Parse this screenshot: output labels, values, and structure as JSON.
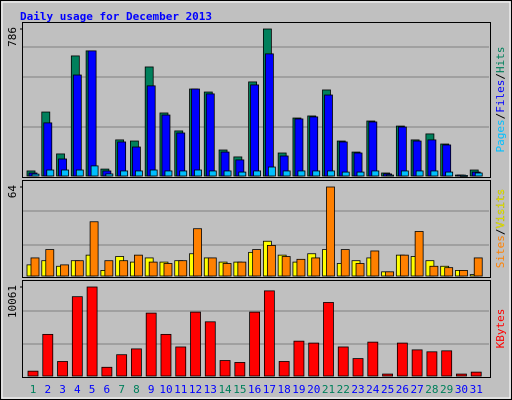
{
  "chart_data": [
    {
      "type": "bar",
      "title": "Daily usage for December 2013",
      "ylim": [
        0,
        786
      ],
      "yticks": [
        786
      ],
      "legend_separator": "/",
      "series": [
        {
          "name": "Hits",
          "color": "#00805c",
          "values": [
            27,
            342,
            118,
            642,
            669,
            37,
            193,
            187,
            583,
            337,
            241,
            465,
            449,
            139,
            102,
            503,
            786,
            123,
            310,
            321,
            460,
            187,
            128,
            294,
            16,
            267,
            193,
            225,
            171,
            5,
            32
          ]
        },
        {
          "name": "Files",
          "color": "#0000ff",
          "values": [
            16,
            284,
            91,
            540,
            669,
            27,
            182,
            155,
            482,
            326,
            230,
            465,
            439,
            128,
            86,
            487,
            653,
            107,
            305,
            316,
            433,
            182,
            123,
            289,
            11,
            262,
            187,
            193,
            166,
            5,
            21
          ]
        },
        {
          "name": "Pages",
          "color": "#00c0ff",
          "values": [
            10,
            32,
            32,
            32,
            54,
            11,
            27,
            27,
            32,
            27,
            27,
            32,
            27,
            27,
            21,
            27,
            48,
            27,
            27,
            27,
            27,
            21,
            21,
            27,
            5,
            27,
            27,
            27,
            21,
            3,
            16
          ]
        }
      ]
    },
    {
      "type": "bar",
      "ylim": [
        0,
        64
      ],
      "yticks": [
        64
      ],
      "legend_separator": "/",
      "series": [
        {
          "name": "Visits",
          "color": "#ffff00",
          "values": [
            8,
            11,
            7,
            11,
            15,
            4,
            14,
            10,
            13,
            10,
            11,
            16,
            13,
            10,
            10,
            17,
            25,
            15,
            10,
            16,
            19,
            9,
            11,
            13,
            3,
            15,
            14,
            11,
            7,
            4,
            1
          ]
        },
        {
          "name": "Sites",
          "color": "#ff8000",
          "values": [
            13,
            19,
            8,
            11,
            39,
            11,
            11,
            15,
            10,
            9,
            11,
            34,
            13,
            9,
            10,
            19,
            22,
            14,
            12,
            13,
            64,
            19,
            9,
            18,
            3,
            15,
            32,
            7,
            6,
            4,
            13
          ]
        }
      ]
    },
    {
      "type": "bar",
      "ylim": [
        0,
        10061
      ],
      "yticks": [
        10061
      ],
      "series": [
        {
          "name": "KBytes",
          "color": "#ff0000",
          "values": [
            547,
            4705,
            1641,
            8967,
            10061,
            985,
            2407,
            3063,
            7111,
            4705,
            3282,
            7220,
            6126,
            1750,
            1532,
            7220,
            9623,
            1641,
            3938,
            3720,
            8311,
            3282,
            1969,
            3829,
            219,
            3720,
            2954,
            2735,
            2845,
            219,
            438
          ]
        }
      ],
      "categories": [
        "1",
        "2",
        "3",
        "4",
        "5",
        "6",
        "7",
        "8",
        "9",
        "10",
        "11",
        "12",
        "13",
        "14",
        "15",
        "16",
        "17",
        "18",
        "19",
        "20",
        "21",
        "22",
        "23",
        "24",
        "25",
        "26",
        "27",
        "28",
        "29",
        "30",
        "31"
      ],
      "category_colors": [
        "#00805c",
        "#0000ff",
        "#0000ff",
        "#0000ff",
        "#0000ff",
        "#0000ff",
        "#00805c",
        "#00805c",
        "#0000ff",
        "#0000ff",
        "#0000ff",
        "#0000ff",
        "#0000ff",
        "#00805c",
        "#00805c",
        "#0000ff",
        "#0000ff",
        "#0000ff",
        "#0000ff",
        "#0000ff",
        "#00805c",
        "#00805c",
        "#0000ff",
        "#0000ff",
        "#0000ff",
        "#0000ff",
        "#0000ff",
        "#00805c",
        "#00805c",
        "#0000ff",
        "#0000ff"
      ]
    }
  ]
}
